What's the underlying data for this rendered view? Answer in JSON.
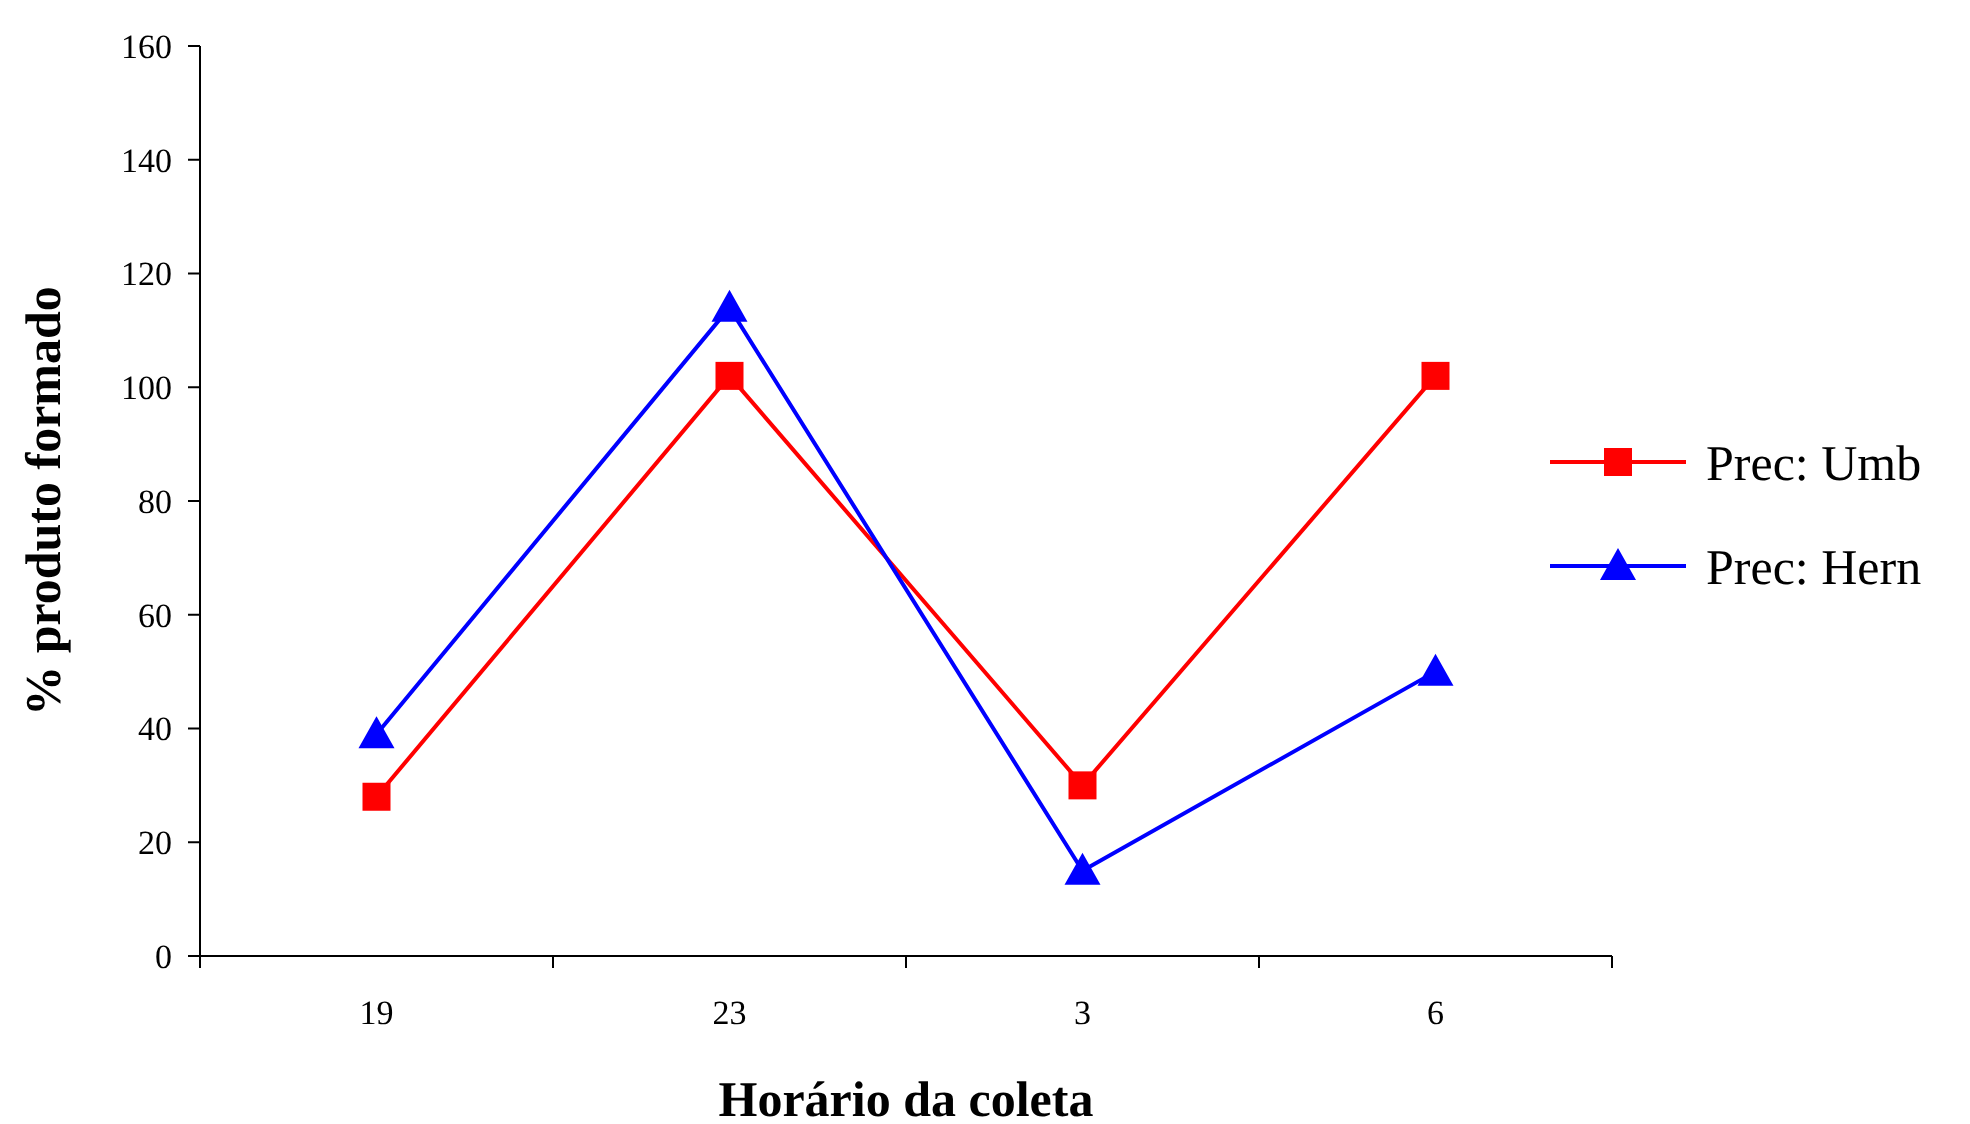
{
  "chart_data": {
    "type": "line",
    "xlabel": "Horário da coleta",
    "ylabel": "% produto formado",
    "categories": [
      "19",
      "23",
      "3",
      "6"
    ],
    "series": [
      {
        "name": "Prec: Umb",
        "color": "#ff0000",
        "marker": "square",
        "values": [
          28,
          102,
          30,
          102
        ]
      },
      {
        "name": "Prec: Hern",
        "color": "#0000ff",
        "marker": "triangle",
        "values": [
          39,
          114,
          15,
          50
        ]
      }
    ],
    "ylim": [
      0,
      160
    ],
    "yticks": [
      0,
      20,
      40,
      60,
      80,
      100,
      120,
      140,
      160
    ],
    "grid": false,
    "legend": "right",
    "line_style": "solid"
  }
}
